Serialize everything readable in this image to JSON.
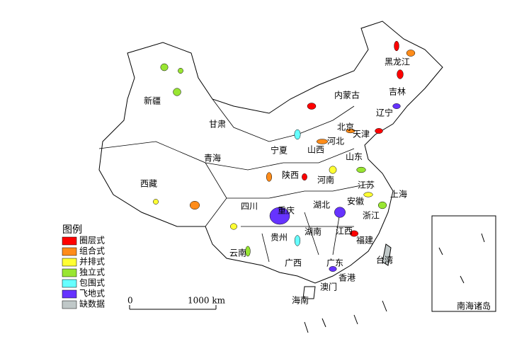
{
  "map": {
    "regions": [
      "黑龙江",
      "吉林",
      "辽宁",
      "内蒙古",
      "新疆",
      "甘肃",
      "北京",
      "天津",
      "河北",
      "山西",
      "山东",
      "宁夏",
      "青海",
      "陕西",
      "河南",
      "西藏",
      "四川",
      "重庆",
      "湖北",
      "安徽",
      "江苏",
      "上海",
      "浙江",
      "湖南",
      "江西",
      "贵州",
      "福建",
      "云南",
      "广西",
      "广东",
      "台湾",
      "香港",
      "澳门",
      "海南"
    ],
    "legend": {
      "title": "图例",
      "items": [
        {
          "name": "圈层式",
          "color": "#ff0000"
        },
        {
          "name": "组合式",
          "color": "#ff8c1a"
        },
        {
          "name": "并排式",
          "color": "#ffff33"
        },
        {
          "name": "独立式",
          "color": "#99e632"
        },
        {
          "name": "包围式",
          "color": "#66ffff"
        },
        {
          "name": "飞地式",
          "color": "#6633ff"
        },
        {
          "name": "缺数据",
          "color": "#c0c8c8"
        }
      ]
    },
    "scale": {
      "start": "0",
      "end": "1000 km"
    },
    "inset": "南海诸岛"
  }
}
